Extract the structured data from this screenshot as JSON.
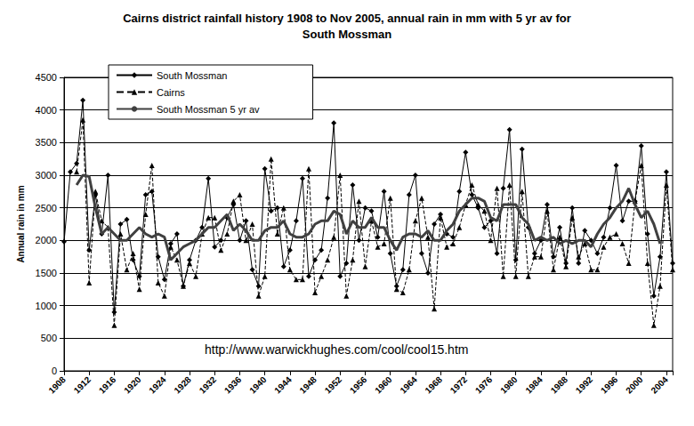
{
  "chart_data": {
    "type": "line",
    "title": "Cairns district rainfall history 1908 to Nov 2005, annual rain in mm with 5 yr av for\nSouth Mossman",
    "y_label": "Annual rain in mm",
    "annotation": "http://www.warwickhughes.com/cool/cool15.htm",
    "x": [
      1908,
      1909,
      1910,
      1911,
      1912,
      1913,
      1914,
      1915,
      1916,
      1917,
      1918,
      1919,
      1920,
      1921,
      1922,
      1923,
      1924,
      1925,
      1926,
      1927,
      1928,
      1929,
      1930,
      1931,
      1932,
      1933,
      1934,
      1935,
      1936,
      1937,
      1938,
      1939,
      1940,
      1941,
      1942,
      1943,
      1944,
      1945,
      1946,
      1947,
      1948,
      1949,
      1950,
      1951,
      1952,
      1953,
      1954,
      1955,
      1956,
      1957,
      1958,
      1959,
      1960,
      1961,
      1962,
      1963,
      1964,
      1965,
      1966,
      1967,
      1968,
      1969,
      1970,
      1971,
      1972,
      1973,
      1974,
      1975,
      1976,
      1977,
      1978,
      1979,
      1980,
      1981,
      1982,
      1983,
      1984,
      1985,
      1986,
      1987,
      1988,
      1989,
      1990,
      1991,
      1992,
      1993,
      1994,
      1995,
      1996,
      1997,
      1998,
      1999,
      2000,
      2001,
      2002,
      2003,
      2004,
      2005
    ],
    "xlim": [
      1908,
      2005
    ],
    "xticks": [
      1908,
      1912,
      1916,
      1920,
      1924,
      1928,
      1932,
      1936,
      1940,
      1944,
      1948,
      1952,
      1956,
      1960,
      1964,
      1968,
      1972,
      1976,
      1980,
      1984,
      1988,
      1992,
      1996,
      2000,
      2004
    ],
    "ylim": [
      0,
      4500
    ],
    "yticks": [
      0,
      500,
      1000,
      1500,
      2000,
      2500,
      3000,
      3500,
      4000,
      4500
    ],
    "grid": true,
    "legend": "top-left",
    "series": [
      {
        "name": "South Mossman",
        "color": "#000000",
        "marker": "diamond",
        "line_style": "solid",
        "values": [
          1980,
          3050,
          3180,
          4150,
          1850,
          2700,
          2100,
          3000,
          900,
          2250,
          2320,
          1700,
          1450,
          2700,
          2750,
          1750,
          1400,
          1950,
          2100,
          1300,
          1700,
          2000,
          2200,
          2950,
          1900,
          2000,
          2350,
          2550,
          2000,
          2300,
          1550,
          1300,
          3100,
          2450,
          2500,
          1600,
          1850,
          2300,
          2950,
          1450,
          1700,
          1850,
          2650,
          3800,
          1450,
          1650,
          2850,
          2000,
          2500,
          2450,
          2050,
          2750,
          1800,
          1300,
          1550,
          2700,
          3000,
          1800,
          1500,
          2250,
          2400,
          2100,
          2050,
          2750,
          3350,
          2700,
          2500,
          2200,
          2300,
          1800,
          2800,
          3700,
          1700,
          3400,
          2200,
          1800,
          2000,
          2550,
          1750,
          2200,
          1650,
          2500,
          1650,
          2150,
          2000,
          1800,
          2050,
          2500,
          3150,
          2300,
          2600,
          2600,
          3450,
          2100,
          1150,
          1750,
          3050,
          1650
        ]
      },
      {
        "name": "Cairns",
        "color": "#000000",
        "marker": "triangle",
        "line_style": "dashed",
        "values": [
          null,
          null,
          3050,
          3850,
          1350,
          2750,
          2300,
          2200,
          700,
          2100,
          1550,
          1800,
          1250,
          2400,
          3150,
          1350,
          1150,
          1900,
          1700,
          1300,
          1650,
          1450,
          2100,
          2350,
          2350,
          1850,
          2100,
          2600,
          2700,
          2000,
          2250,
          1150,
          1450,
          3250,
          2100,
          2500,
          1550,
          1400,
          1400,
          3100,
          1200,
          1450,
          1700,
          2050,
          3000,
          1150,
          1700,
          2600,
          1600,
          2300,
          1900,
          1950,
          2650,
          1250,
          1200,
          1550,
          2300,
          2650,
          2050,
          950,
          2350,
          1900,
          1950,
          2200,
          2550,
          2850,
          2550,
          2450,
          2000,
          2800,
          1450,
          2850,
          1450,
          2750,
          1450,
          1750,
          1750,
          2450,
          1550,
          2050,
          1600,
          2350,
          1750,
          1950,
          1550,
          1550,
          1900,
          2050,
          2100,
          1950,
          1650,
          2600,
          3150,
          1650,
          700,
          1300,
          2850,
          1550
        ]
      },
      {
        "name": "South Mossman 5 yr av",
        "color": "#404040",
        "marker": "none",
        "line_style": "solid",
        "values": [
          null,
          null,
          2850,
          3000,
          2980,
          2500,
          2100,
          2200,
          2100,
          2000,
          2000,
          2100,
          2200,
          2100,
          2050,
          2100,
          2050,
          1700,
          1800,
          1900,
          1950,
          2000,
          2100,
          2200,
          2200,
          2300,
          2400,
          2150,
          2250,
          2150,
          2000,
          2000,
          2150,
          2200,
          2200,
          2300,
          2100,
          2050,
          2050,
          2100,
          2250,
          2300,
          2300,
          2450,
          2400,
          2100,
          2300,
          2200,
          2200,
          2350,
          2200,
          2200,
          2000,
          1850,
          2050,
          2100,
          2100,
          2050,
          2150,
          2000,
          2000,
          2150,
          2250,
          2450,
          2550,
          2650,
          2650,
          2600,
          2350,
          2300,
          2550,
          2550,
          2550,
          2350,
          2250,
          2000,
          2050,
          2000,
          2050,
          1950,
          2000,
          1950,
          2000,
          2000,
          1900,
          2100,
          2250,
          2350,
          2500,
          2600,
          2800,
          2550,
          2350,
          2450,
          2250,
          1950,
          null,
          null
        ]
      }
    ]
  }
}
